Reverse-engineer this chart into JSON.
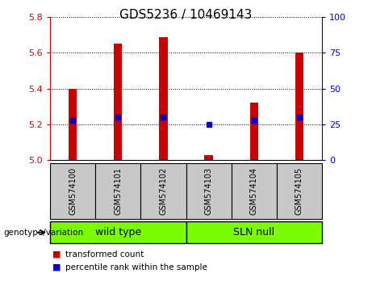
{
  "title": "GDS5236 / 10469143",
  "samples": [
    "GSM574100",
    "GSM574101",
    "GSM574102",
    "GSM574103",
    "GSM574104",
    "GSM574105"
  ],
  "transformed_count": [
    5.4,
    5.65,
    5.69,
    5.03,
    5.32,
    5.6
  ],
  "percentile_rank": [
    28,
    30,
    30,
    25,
    28,
    30
  ],
  "ylim_left": [
    5.0,
    5.8
  ],
  "ylim_right": [
    0,
    100
  ],
  "yticks_left": [
    5.0,
    5.2,
    5.4,
    5.6,
    5.8
  ],
  "yticks_right": [
    0,
    25,
    50,
    75,
    100
  ],
  "bar_color": "#cc0000",
  "dot_color": "#0000cc",
  "bar_width": 0.18,
  "group_labels": [
    "wild type",
    "SLN null"
  ],
  "group_ranges": [
    [
      0,
      3
    ],
    [
      3,
      6
    ]
  ],
  "genotype_label": "genotype/variation",
  "legend_items": [
    "transformed count",
    "percentile rank within the sample"
  ],
  "legend_colors": [
    "#cc0000",
    "#0000cc"
  ],
  "title_fontsize": 11,
  "axis_color_left": "#cc0000",
  "axis_color_right": "#0000cc",
  "sample_box_color": "#c8c8c8",
  "group_box_color": "#7cfc00",
  "tick_fontsize": 8
}
